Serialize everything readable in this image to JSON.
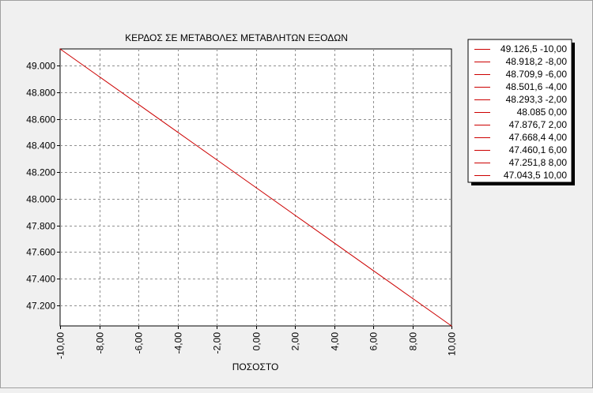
{
  "chart_data": {
    "type": "line",
    "title": "ΚΕΡΔΟΣ ΣΕ ΜΕΤΑΒΟΛΕΣ ΜΕΤΑΒΛΗΤΩΝ ΕΞΟΔΩΝ",
    "xlabel": "ΠΟΣΟΣΤΟ",
    "ylabel": "",
    "xlim": [
      -10,
      10
    ],
    "ylim": [
      47043.5,
      49126.5
    ],
    "grid": true,
    "legend_position": "right",
    "x_tick_values": [
      -10,
      -8,
      -6,
      -4,
      -2,
      0,
      2,
      4,
      6,
      8,
      10
    ],
    "x_tick_labels": [
      "-10,00",
      "-8,00",
      "-6,00",
      "-4,00",
      "-2,00",
      "0,00",
      "2,00",
      "4,00",
      "6,00",
      "8,00",
      "10,00"
    ],
    "y_tick_values": [
      47200,
      47400,
      47600,
      47800,
      48000,
      48200,
      48400,
      48600,
      48800,
      49000
    ],
    "y_tick_labels": [
      "47.200",
      "47.400",
      "47.600",
      "47.800",
      "48.000",
      "48.200",
      "48.400",
      "48.600",
      "48.800",
      "49.000"
    ],
    "series": [
      {
        "color": "#cc0000",
        "x": [
          -10,
          -8,
          -6,
          -4,
          -2,
          0,
          2,
          4,
          6,
          8,
          10
        ],
        "values": [
          49126.5,
          48918.2,
          48709.9,
          48501.6,
          48293.3,
          48085,
          47876.7,
          47668.4,
          47460.1,
          47251.8,
          47043.5
        ]
      }
    ],
    "legend_entries": [
      "49.126,5 -10,00",
      "48.918,2 -8,00",
      "48.709,9 -6,00",
      "48.501,6 -4,00",
      "48.293,3 -2,00",
      "48.085 0,00",
      "47.876,7 2,00",
      "47.668,4 4,00",
      "47.460,1 6,00",
      "47.251,8 8,00",
      "47.043,5 10,00"
    ]
  }
}
